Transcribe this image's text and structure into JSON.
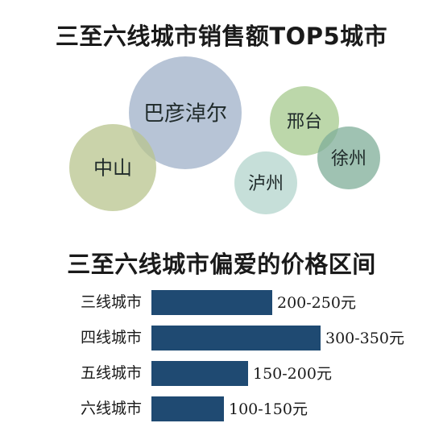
{
  "chart_data": [
    {
      "type": "bubble",
      "title": "三至六线城市销售额TOP5城市",
      "items": [
        {
          "name": "巴彦淖尔",
          "color": "#9fb0c8"
        },
        {
          "name": "中山",
          "color": "#b8c48e"
        },
        {
          "name": "邢台",
          "color": "#a6c98e"
        },
        {
          "name": "徐州",
          "color": "#7fae98"
        },
        {
          "name": "泸州",
          "color": "#b3d4cc"
        }
      ]
    },
    {
      "type": "bar",
      "orientation": "horizontal",
      "title": "三至六线城市偏爱的价格区间",
      "categories": [
        "三线城市",
        "四线城市",
        "五线城市",
        "六线城市"
      ],
      "ranges": [
        [
          200,
          250
        ],
        [
          300,
          350
        ],
        [
          150,
          200
        ],
        [
          100,
          150
        ]
      ],
      "value_labels": [
        "200-250元",
        "300-350元",
        "150-200元",
        "100-150元"
      ],
      "bar_color": "#1f4a72"
    }
  ]
}
